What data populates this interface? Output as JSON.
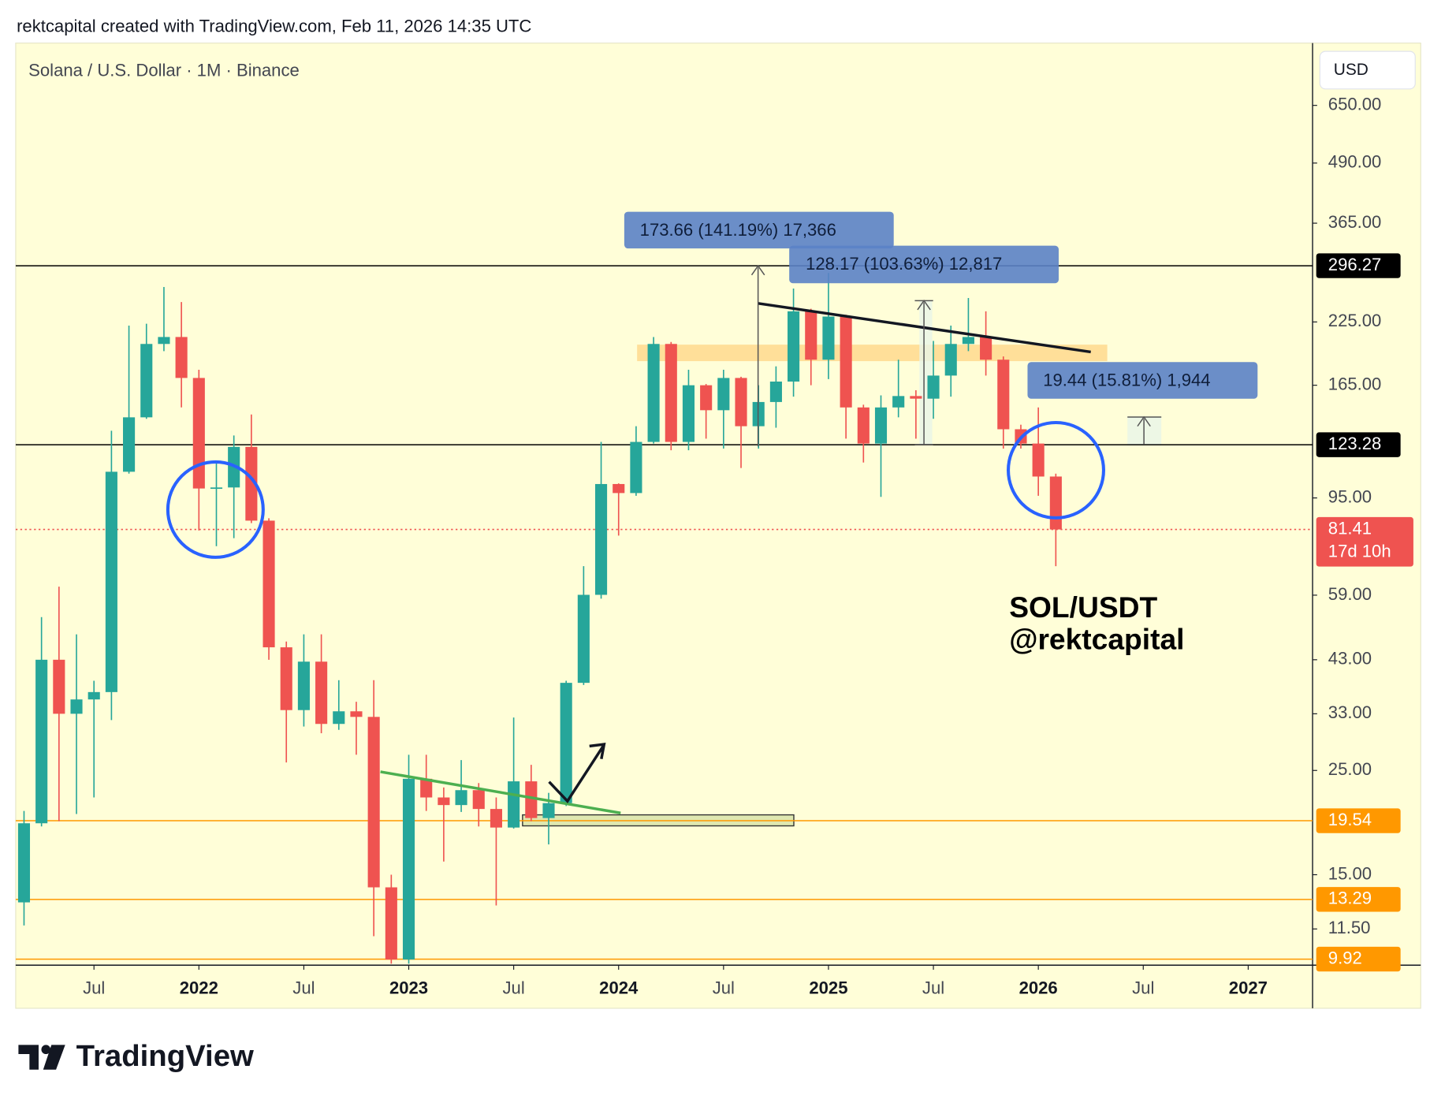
{
  "header": "rektcapital created with TradingView.com, Feb 11, 2026 14:35 UTC",
  "brand": "TradingView",
  "chart_data": {
    "type": "candlestick",
    "title": "Solana / U.S. Dollar · 1M · Binance",
    "currency": "USD",
    "log_scale": true,
    "up_color": "#26a69a",
    "down_color": "#ef5350",
    "x": [
      "2021-03",
      "2021-04",
      "2021-05",
      "2021-06",
      "2021-07",
      "2021-08",
      "2021-09",
      "2021-10",
      "2021-11",
      "2021-12",
      "2022-01",
      "2022-02",
      "2022-03",
      "2022-04",
      "2022-05",
      "2022-06",
      "2022-07",
      "2022-08",
      "2022-09",
      "2022-10",
      "2022-11",
      "2022-12",
      "2023-01",
      "2023-02",
      "2023-03",
      "2023-04",
      "2023-05",
      "2023-06",
      "2023-07",
      "2023-08",
      "2023-09",
      "2023-10",
      "2023-11",
      "2023-12",
      "2024-01",
      "2024-02",
      "2024-03",
      "2024-04",
      "2024-05",
      "2024-06",
      "2024-07",
      "2024-08",
      "2024-09",
      "2024-10",
      "2024-11",
      "2024-12",
      "2025-01",
      "2025-02",
      "2025-03",
      "2025-04",
      "2025-05",
      "2025-06",
      "2025-07",
      "2025-08",
      "2025-09",
      "2025-10",
      "2025-11",
      "2025-12",
      "2026-01",
      "2026-02"
    ],
    "open": [
      13.1,
      19.3,
      43,
      33,
      35.4,
      36.7,
      108,
      141,
      202,
      209,
      171,
      99.5,
      100,
      122,
      85,
      45.7,
      33.6,
      42.6,
      31.4,
      33.4,
      32.5,
      14.1,
      9.9,
      24,
      21.9,
      21.1,
      22.7,
      20.7,
      18.9,
      23.7,
      19.8,
      21.3,
      38.4,
      59.1,
      101.7,
      97.3,
      125,
      202,
      125,
      165,
      146,
      171,
      135,
      152,
      168,
      237,
      187,
      231,
      148,
      124,
      148,
      156.5,
      154.5,
      173,
      202,
      209,
      187,
      133,
      124,
      105.5
    ],
    "high": [
      20.5,
      53,
      61.5,
      48.7,
      38.8,
      132,
      221,
      223,
      267,
      248,
      178,
      113,
      129,
      143,
      86,
      47,
      48.7,
      48.7,
      38.9,
      35,
      38.9,
      15,
      27,
      27,
      23,
      26.3,
      23.5,
      21.9,
      32.4,
      25.7,
      22.4,
      38.8,
      68,
      125,
      102,
      135,
      209,
      204,
      178,
      166,
      178,
      172,
      165,
      181,
      265,
      240,
      286,
      233,
      150,
      157,
      187,
      161,
      205,
      221,
      253,
      237,
      190,
      136,
      148,
      107
    ],
    "low": [
      11.7,
      19,
      19.5,
      20.2,
      21.9,
      32,
      107,
      140,
      195,
      148,
      81,
      75,
      78,
      84,
      43,
      26,
      31,
      30,
      30.5,
      27,
      11.1,
      9.7,
      9.7,
      20.5,
      16,
      20.4,
      19,
      12.9,
      18.8,
      19.5,
      17.4,
      21,
      38,
      58,
      79,
      96,
      124,
      120,
      120,
      127,
      121,
      110,
      121,
      134,
      156,
      165,
      170,
      127,
      113,
      95.5,
      141,
      127,
      140,
      156,
      195,
      173,
      121,
      121,
      96,
      68
    ],
    "close": [
      19.3,
      43,
      33,
      35.4,
      36.7,
      108,
      141,
      202,
      209,
      171,
      99.5,
      100,
      122,
      85,
      45.7,
      33.6,
      42.6,
      31.4,
      33.4,
      32.5,
      14.1,
      9.9,
      24,
      21.9,
      21.1,
      22.7,
      20.7,
      18.9,
      23.7,
      19.8,
      21.3,
      38.4,
      59.1,
      101.7,
      97.3,
      125,
      202,
      125,
      165,
      146,
      171,
      135,
      152,
      168,
      237,
      187,
      231,
      148,
      124,
      148,
      156.5,
      154.5,
      173,
      202,
      209,
      187,
      133,
      124,
      105.5,
      81.41
    ],
    "xlim": [
      "2021-02",
      "2027-04"
    ],
    "xticks": [
      {
        "value": "2021-07",
        "label": "Jul"
      },
      {
        "value": "2022-01",
        "label": "2022"
      },
      {
        "value": "2022-07",
        "label": "Jul"
      },
      {
        "value": "2023-01",
        "label": "2023"
      },
      {
        "value": "2023-07",
        "label": "Jul"
      },
      {
        "value": "2024-01",
        "label": "2024"
      },
      {
        "value": "2024-07",
        "label": "Jul"
      },
      {
        "value": "2025-01",
        "label": "2025"
      },
      {
        "value": "2025-07",
        "label": "Jul"
      },
      {
        "value": "2026-01",
        "label": "2026"
      },
      {
        "value": "2026-07",
        "label": "Jul"
      },
      {
        "value": "2027-01",
        "label": "2027"
      }
    ],
    "ylim": [
      9.63,
      882
    ],
    "yticks": [
      {
        "value": 650,
        "label": "650.00"
      },
      {
        "value": 490,
        "label": "490.00"
      },
      {
        "value": 365,
        "label": "365.00"
      },
      {
        "value": 225,
        "label": "225.00"
      },
      {
        "value": 165,
        "label": "165.00"
      },
      {
        "value": 95,
        "label": "95.00"
      },
      {
        "value": 59,
        "label": "59.00"
      },
      {
        "value": 43,
        "label": "43.00"
      },
      {
        "value": 33,
        "label": "33.00"
      },
      {
        "value": 25,
        "label": "25.00"
      },
      {
        "value": 15,
        "label": "15.00"
      },
      {
        "value": 11.5,
        "label": "11.50"
      }
    ],
    "price_lines": [
      {
        "value": 296.27,
        "color": "#000000",
        "style": "solid"
      },
      {
        "value": 123.28,
        "color": "#000000",
        "style": "solid"
      },
      {
        "value": 81.41,
        "color": "#ef5350",
        "style": "dotted"
      },
      {
        "value": 19.54,
        "color": "#ff9800",
        "style": "solid"
      },
      {
        "value": 13.29,
        "color": "#ff9800",
        "style": "solid"
      },
      {
        "value": 9.92,
        "color": "#ff9800",
        "style": "solid"
      }
    ],
    "countdown": "17d 10h",
    "annotations": [
      "173.66 (141.19%) 17,366",
      "128.17 (103.63%) 12,817",
      "19.44 (15.81%) 1,944"
    ],
    "watermark": [
      "SOL/USDT",
      "@rektcapital"
    ]
  }
}
